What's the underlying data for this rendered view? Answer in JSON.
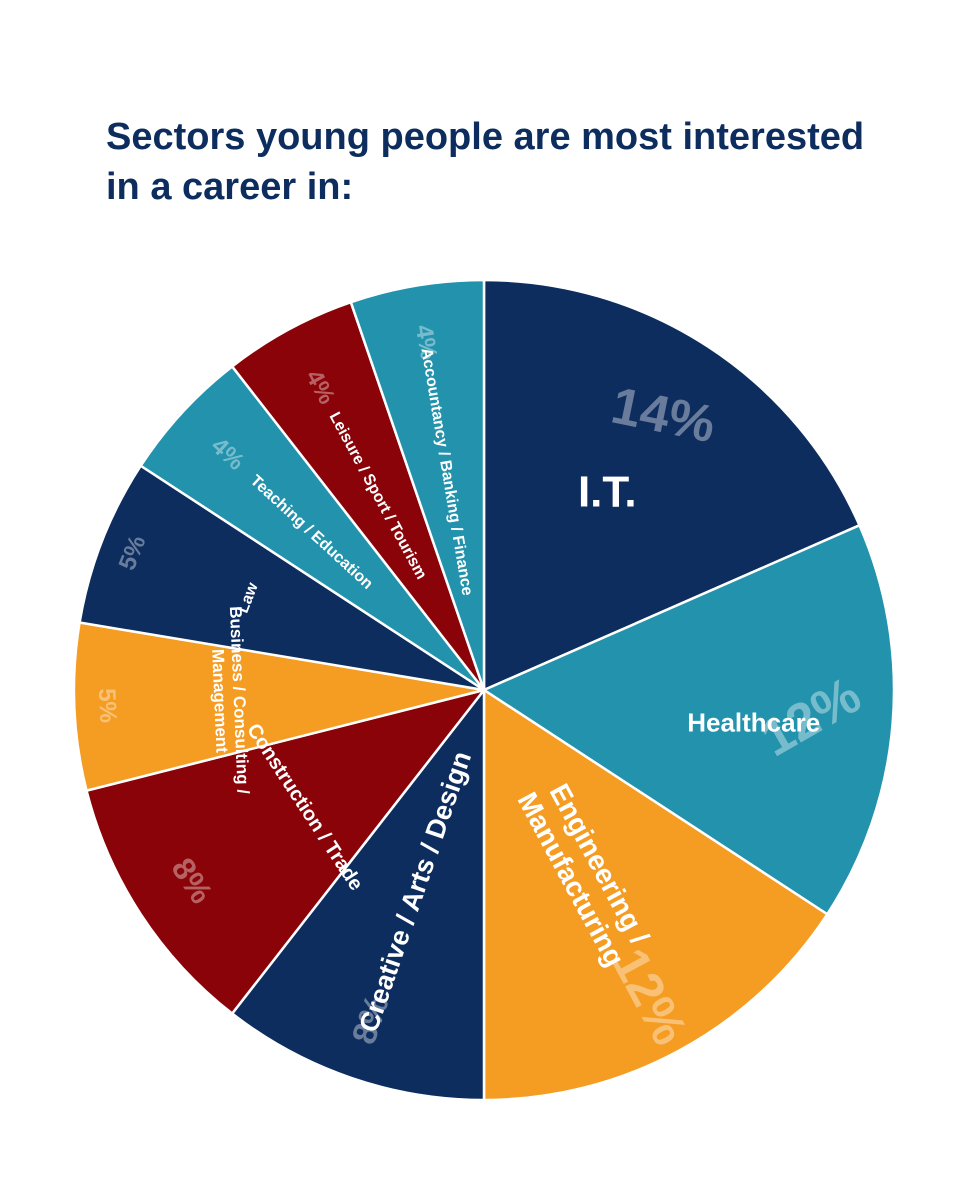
{
  "chart_data": {
    "type": "pie",
    "title": "Sectors young people are most interested in a career in:",
    "slices": [
      {
        "label": "I.T.",
        "value": 14,
        "value_label": "14%",
        "color": "#0d2d5e"
      },
      {
        "label": "Healthcare",
        "value": 12,
        "value_label": "12%",
        "color": "#2393ad"
      },
      {
        "label": "Engineering / Manufacturing",
        "label_lines": [
          "Engineering /",
          "Manufacturing"
        ],
        "value": 12,
        "value_label": "12%",
        "color": "#f59c23"
      },
      {
        "label": "Creative / Arts / Design",
        "value": 8,
        "value_label": "8%",
        "color": "#0d2d5e"
      },
      {
        "label": "Construction / Trade",
        "value": 8,
        "value_label": "8%",
        "color": "#8a0308"
      },
      {
        "label": "Business / Consulting / Management",
        "label_lines": [
          "Business / Consulting /",
          "Management"
        ],
        "value": 5,
        "value_label": "5%",
        "color": "#f59c23"
      },
      {
        "label": "Law",
        "value": 5,
        "value_label": "5%",
        "color": "#0d2d5e"
      },
      {
        "label": "Teaching / Education",
        "value": 4,
        "value_label": "4%",
        "color": "#2393ad"
      },
      {
        "label": "Leisure / Sport / Tourism",
        "value": 4,
        "value_label": "4%",
        "color": "#8a0308"
      },
      {
        "label": "Accountancy / Banking / Finance",
        "value": 4,
        "value_label": "4%",
        "color": "#2393ad"
      }
    ],
    "colors": {
      "navy": "#0d2d5e",
      "teal": "#2393ad",
      "orange": "#f59c23",
      "red": "#8a0308",
      "title": "#0d2d5e"
    }
  }
}
